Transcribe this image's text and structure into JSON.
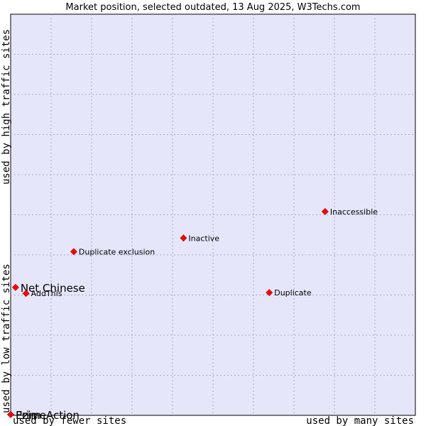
{
  "chart_data": {
    "type": "scatter",
    "title": "Market position, selected outdated, 13 Aug 2025, W3Techs.com",
    "x_axis": {
      "low_label": "used by fewer sites",
      "high_label": "used by many sites",
      "range": [
        0,
        100
      ]
    },
    "y_axis": {
      "low_label": "used by low traffic sites",
      "high_label": "used by high traffic sites",
      "range": [
        0,
        100
      ]
    },
    "grid": true,
    "colors": {
      "plot_bg": "#e6e6fa",
      "grid": "#aaaacc",
      "point": "#ff0000",
      "point_edge": "#aa0000",
      "text": "#000000"
    },
    "points": [
      {
        "label": "Inaccessible",
        "x": 77.7,
        "y": 50.8,
        "emphasis": false
      },
      {
        "label": "Inactive",
        "x": 42.7,
        "y": 44.2,
        "emphasis": false
      },
      {
        "label": "Duplicate exclusion",
        "x": 15.6,
        "y": 40.8,
        "emphasis": false
      },
      {
        "label": "Net Chinese",
        "x": 1.2,
        "y": 31.9,
        "emphasis": true
      },
      {
        "label": "AddThis",
        "x": 3.8,
        "y": 30.4,
        "emphasis": false
      },
      {
        "label": "Duplicate",
        "x": 63.9,
        "y": 30.6,
        "emphasis": false
      },
      {
        "label": "PrimeAction",
        "x": 0.0,
        "y": 0.2,
        "emphasis": true
      },
      {
        "label": "Ezim",
        "x": 0.0,
        "y": 0.2,
        "emphasis": true
      }
    ]
  }
}
